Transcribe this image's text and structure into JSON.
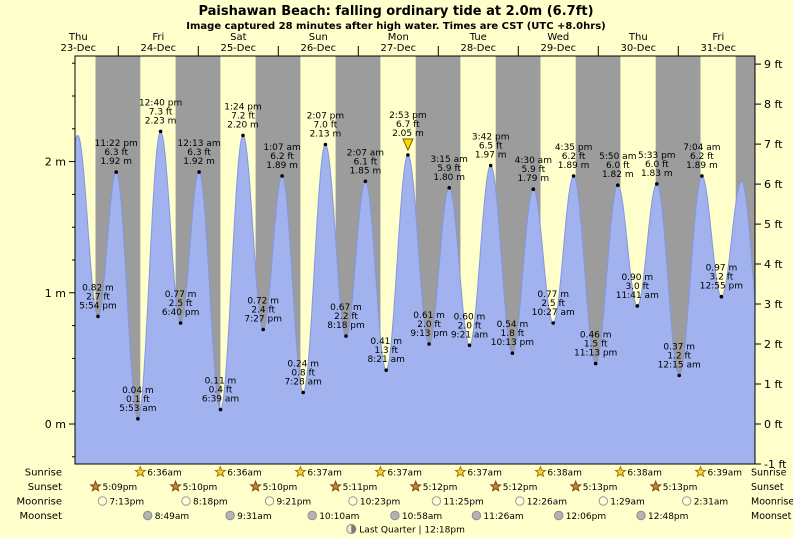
{
  "title": "Paishawan Beach: falling  ordinary tide at 2.0m (6.7ft)",
  "subtitle": "Image captured 28 minutes after high water. Times are CST (UTC +8.0hrs)",
  "colors": {
    "background": "#ffffcc",
    "day_band": "#ffffcc",
    "night_band": "#9c9c9c",
    "tide_fill": "#a2b2ee",
    "tide_stroke": "#8097e0",
    "day_label": "#ff0000",
    "text": "#000000",
    "sunrise_star_fill": "#ffd440",
    "sunrise_star_stroke": "#a07800",
    "sunset_star_fill": "#d4813b",
    "sunset_star_stroke": "#7a4513",
    "moonrise_dot_fill": "#ffffd8",
    "moonrise_dot_stroke": "#999999",
    "moonset_dot_fill": "#b4b4b4",
    "moonset_dot_stroke": "#8c8c8c",
    "current_marker": "#ffd700"
  },
  "chart_data": {
    "type": "area",
    "title": "Paishawan Beach tide height",
    "ylabel_left": "m",
    "ylabel_right": "ft",
    "ylim_m": [
      -0.305,
      2.805
    ],
    "domain_hours": [
      11,
      215
    ],
    "grid": false,
    "days": [
      {
        "dow": "Thu",
        "date": "23-Dec",
        "noon_t": 12
      },
      {
        "dow": "Fri",
        "date": "24-Dec",
        "noon_t": 36
      },
      {
        "dow": "Sat",
        "date": "25-Dec",
        "noon_t": 60
      },
      {
        "dow": "Sun",
        "date": "26-Dec",
        "noon_t": 84
      },
      {
        "dow": "Mon",
        "date": "27-Dec",
        "noon_t": 108
      },
      {
        "dow": "Tue",
        "date": "28-Dec",
        "noon_t": 132
      },
      {
        "dow": "Wed",
        "date": "29-Dec",
        "noon_t": 156
      },
      {
        "dow": "Thu",
        "date": "30-Dec",
        "noon_t": 180
      },
      {
        "dow": "Fri",
        "date": "31-Dec",
        "noon_t": 204
      }
    ],
    "y_axis_left_ticks": [
      {
        "m": 2,
        "label": "2 m"
      },
      {
        "m": 1,
        "label": "1 m"
      },
      {
        "m": 0,
        "label": "0 m"
      }
    ],
    "y_axis_right_ticks": [
      {
        "ft": 9,
        "label": "9 ft"
      },
      {
        "ft": 8,
        "label": "8 ft"
      },
      {
        "ft": 7,
        "label": "7 ft"
      },
      {
        "ft": 6,
        "label": "6 ft"
      },
      {
        "ft": 5,
        "label": "5 ft"
      },
      {
        "ft": 4,
        "label": "4 ft"
      },
      {
        "ft": 3,
        "label": "3 ft"
      },
      {
        "ft": 2,
        "label": "2 ft"
      },
      {
        "ft": 1,
        "label": "1 ft"
      },
      {
        "ft": 0,
        "label": "0 ft"
      },
      {
        "ft": -1,
        "label": "-1 ft"
      }
    ],
    "night_bands": [
      [
        17.15,
        30.6
      ],
      [
        41.17,
        54.6
      ],
      [
        65.17,
        78.62
      ],
      [
        89.18,
        102.62
      ],
      [
        113.2,
        126.62
      ],
      [
        137.2,
        150.63
      ],
      [
        161.22,
        174.63
      ],
      [
        185.22,
        198.65
      ],
      [
        209.22,
        215.0
      ]
    ],
    "extremes": [
      {
        "t": 5.6,
        "m": 0.85,
        "type": "low",
        "annotate": false
      },
      {
        "t": 11.8,
        "m": 2.2,
        "type": "high",
        "annotate": false
      },
      {
        "t": 17.9,
        "m": 0.82,
        "ft": "2.7",
        "time": "5:54 pm",
        "type": "low"
      },
      {
        "t": 23.37,
        "m": 1.92,
        "ft": "6.3",
        "time": "11:22 pm",
        "type": "high"
      },
      {
        "t": 29.88,
        "m": 0.04,
        "ft": "0.1",
        "time": "5:53 am",
        "type": "low"
      },
      {
        "t": 36.67,
        "m": 2.23,
        "ft": "7.3",
        "time": "12:40 pm",
        "type": "high"
      },
      {
        "t": 42.67,
        "m": 0.77,
        "ft": "2.5",
        "time": "6:40 pm",
        "type": "low"
      },
      {
        "t": 48.22,
        "m": 1.92,
        "ft": "6.3",
        "time": "12:13 am",
        "type": "high"
      },
      {
        "t": 54.65,
        "m": 0.11,
        "ft": "0.4",
        "time": "6:39 am",
        "type": "low"
      },
      {
        "t": 61.4,
        "m": 2.2,
        "ft": "7.2",
        "time": "1:24 pm",
        "type": "high"
      },
      {
        "t": 67.45,
        "m": 0.72,
        "ft": "2.4",
        "time": "7:27 pm",
        "type": "low"
      },
      {
        "t": 73.12,
        "m": 1.89,
        "ft": "6.2",
        "time": "1:07 am",
        "type": "high"
      },
      {
        "t": 79.47,
        "m": 0.24,
        "ft": "0.8",
        "time": "7:28 am",
        "type": "low"
      },
      {
        "t": 86.12,
        "m": 2.13,
        "ft": "7.0",
        "time": "2:07 pm",
        "type": "high"
      },
      {
        "t": 92.3,
        "m": 0.67,
        "ft": "2.2",
        "time": "8:18 pm",
        "type": "low"
      },
      {
        "t": 98.12,
        "m": 1.85,
        "ft": "6.1",
        "time": "2:07 am",
        "type": "high"
      },
      {
        "t": 104.35,
        "m": 0.41,
        "ft": "1.3",
        "time": "8:21 am",
        "type": "low"
      },
      {
        "t": 110.88,
        "m": 2.05,
        "ft": "6.7",
        "time": "2:53 pm",
        "type": "high",
        "current": true
      },
      {
        "t": 117.22,
        "m": 0.61,
        "ft": "2.0",
        "time": "9:13 pm",
        "type": "low"
      },
      {
        "t": 123.25,
        "m": 1.8,
        "ft": "5.9",
        "time": "3:15 am",
        "type": "high"
      },
      {
        "t": 129.35,
        "m": 0.6,
        "ft": "2.0",
        "time": "9:21 am",
        "type": "low"
      },
      {
        "t": 135.7,
        "m": 1.97,
        "ft": "6.5",
        "time": "3:42 pm",
        "type": "high"
      },
      {
        "t": 142.22,
        "m": 0.54,
        "ft": "1.8",
        "time": "10:13 pm",
        "type": "low"
      },
      {
        "t": 148.5,
        "m": 1.79,
        "ft": "5.9",
        "time": "4:30 am",
        "type": "high"
      },
      {
        "t": 154.45,
        "m": 0.77,
        "ft": "2.5",
        "time": "10:27 am",
        "type": "low"
      },
      {
        "t": 160.58,
        "m": 1.89,
        "ft": "6.2",
        "time": "4:35 pm",
        "type": "high"
      },
      {
        "t": 167.22,
        "m": 0.46,
        "ft": "1.5",
        "time": "11:13 pm",
        "type": "low"
      },
      {
        "t": 173.83,
        "m": 1.82,
        "ft": "6.0",
        "time": "5:50 am",
        "type": "high"
      },
      {
        "t": 179.68,
        "m": 0.9,
        "ft": "3.0",
        "time": "11:41 am",
        "type": "low"
      },
      {
        "t": 185.55,
        "m": 1.83,
        "ft": "6.0",
        "time": "5:33 pm",
        "type": "high"
      },
      {
        "t": 192.25,
        "m": 0.37,
        "ft": "1.2",
        "time": "12:15 am",
        "type": "low"
      },
      {
        "t": 199.07,
        "m": 1.89,
        "ft": "6.2",
        "time": "7:04 am",
        "type": "high"
      },
      {
        "t": 204.92,
        "m": 0.97,
        "ft": "3.2",
        "time": "12:55 pm",
        "type": "low"
      },
      {
        "t": 211.0,
        "m": 1.85,
        "type": "high",
        "annotate": false
      },
      {
        "t": 217.5,
        "m": 0.5,
        "type": "low",
        "annotate": false
      }
    ]
  },
  "astro": {
    "rows": [
      {
        "name": "Sunrise",
        "icon": "sunrise-star",
        "entries": [
          {
            "t": 30.6,
            "label": "6:36am"
          },
          {
            "t": 54.6,
            "label": "6:36am"
          },
          {
            "t": 78.62,
            "label": "6:37am"
          },
          {
            "t": 102.62,
            "label": "6:37am"
          },
          {
            "t": 126.62,
            "label": "6:37am"
          },
          {
            "t": 150.63,
            "label": "6:38am"
          },
          {
            "t": 174.63,
            "label": "6:38am"
          },
          {
            "t": 198.65,
            "label": "6:39am"
          }
        ]
      },
      {
        "name": "Sunset",
        "icon": "sunset-star",
        "entries": [
          {
            "t": 17.15,
            "label": "5:09pm"
          },
          {
            "t": 41.17,
            "label": "5:10pm"
          },
          {
            "t": 65.17,
            "label": "5:10pm"
          },
          {
            "t": 89.18,
            "label": "5:11pm"
          },
          {
            "t": 113.2,
            "label": "5:12pm"
          },
          {
            "t": 137.2,
            "label": "5:12pm"
          },
          {
            "t": 161.22,
            "label": "5:13pm"
          },
          {
            "t": 185.22,
            "label": "5:13pm"
          }
        ]
      },
      {
        "name": "Moonrise",
        "icon": "moonrise-circle",
        "entries": [
          {
            "t": 19.22,
            "label": "7:13pm"
          },
          {
            "t": 44.3,
            "label": "8:18pm"
          },
          {
            "t": 69.35,
            "label": "9:21pm"
          },
          {
            "t": 94.38,
            "label": "10:23pm"
          },
          {
            "t": 119.42,
            "label": "11:25pm"
          },
          {
            "t": 144.43,
            "label": "12:26am"
          },
          {
            "t": 169.48,
            "label": "1:29am"
          },
          {
            "t": 194.52,
            "label": "2:31am"
          }
        ]
      },
      {
        "name": "Moonset",
        "icon": "moonset-circle",
        "entries": [
          {
            "t": 32.82,
            "label": "8:49am"
          },
          {
            "t": 57.52,
            "label": "9:31am"
          },
          {
            "t": 82.17,
            "label": "10:10am"
          },
          {
            "t": 106.97,
            "label": "10:58am"
          },
          {
            "t": 131.43,
            "label": "11:26am"
          },
          {
            "t": 156.1,
            "label": "12:06pm"
          },
          {
            "t": 180.8,
            "label": "12:48pm"
          }
        ]
      }
    ],
    "footer": {
      "t": 108.3,
      "label": "Last Quarter | 12:18pm",
      "icon": "last-quarter-moon"
    }
  }
}
